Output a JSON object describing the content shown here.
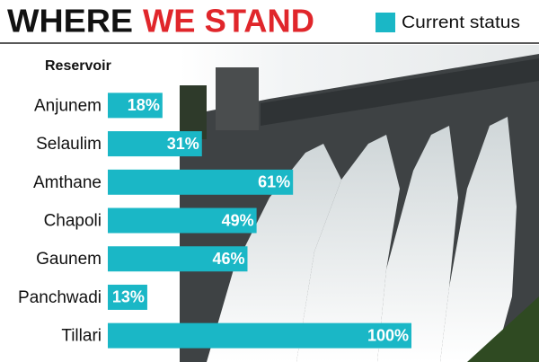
{
  "chart_data": {
    "type": "bar",
    "orientation": "horizontal",
    "title": [
      "WHERE",
      "WE STAND"
    ],
    "y_label": "Reservoir",
    "categories": [
      "Anjunem",
      "Selaulim",
      "Amthane",
      "Chapoli",
      "Gaunem",
      "Panchwadi",
      "Tillari"
    ],
    "series": [
      {
        "name": "Current status",
        "color": "#1ab7c6",
        "values": [
          18,
          31,
          61,
          49,
          46,
          13,
          100
        ],
        "value_labels": [
          "18%",
          "31%",
          "61%",
          "49%",
          "46%",
          "13%",
          "100%"
        ]
      }
    ],
    "xlim": [
      0,
      100
    ],
    "title_colors": [
      "#111111",
      "#e0262b"
    ]
  }
}
